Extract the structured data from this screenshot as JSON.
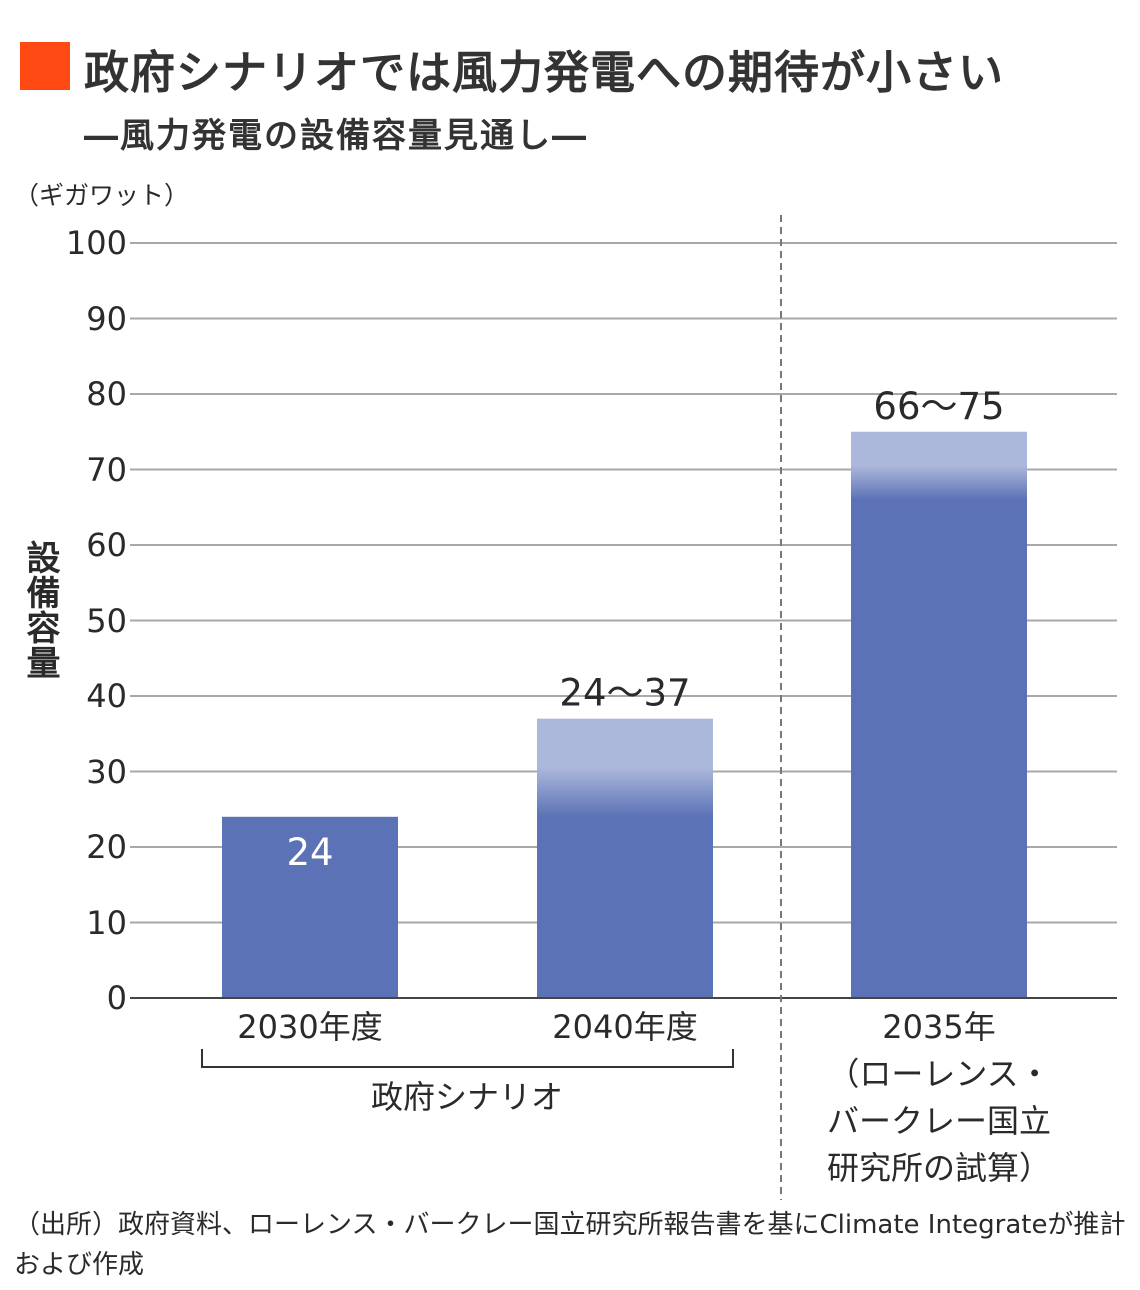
{
  "header": {
    "title": "政府シナリオでは風力発電への期待が小さい",
    "subtitle": "―風力発電の設備容量見通し―",
    "accent": "#FF4A14"
  },
  "chart_data": {
    "type": "bar",
    "title": "政府シナリオでは風力発電への期待が小さい",
    "ylabel": "設備容量",
    "unit": "（ギガワット）",
    "ylim": [
      0,
      100
    ],
    "yticks": [
      "0",
      "10",
      "20",
      "30",
      "40",
      "50",
      "60",
      "70",
      "80",
      "90",
      "100"
    ],
    "categories": [
      "2030年度",
      "2040年度",
      "2035年（ローレンス・バークレー国立研究所の試算）"
    ],
    "bars": [
      {
        "label": "2030年度",
        "low": 24,
        "high": 24,
        "value_label": "24"
      },
      {
        "label": "2040年度",
        "low": 24,
        "high": 37,
        "value_label": "24〜37"
      },
      {
        "label_lines": [
          "2035年",
          "（ローレンス・",
          "バークレー国立",
          "研究所の試算）"
        ],
        "low": 66,
        "high": 75,
        "value_label": "66〜75"
      }
    ],
    "group_label": "政府シナリオ",
    "colors": {
      "dark": "#5B72B6",
      "light": "#ABB8DB"
    },
    "grid": true
  },
  "source": "（出所）政府資料、ローレンス・バークレー国立研究所報告書を基にClimate Integrateが推計および作成"
}
